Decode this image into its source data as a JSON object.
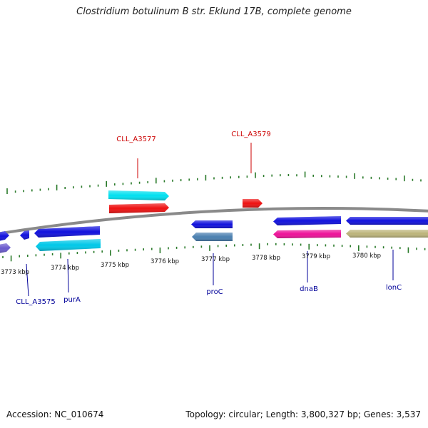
{
  "title": "Clostridium botulinum B str. Eklund 17B, complete genome",
  "footer": {
    "accession": "Accession: NC_010674",
    "topology": "Topology: circular; Length: 3,800,327 bp; Genes: 3,537"
  },
  "colors": {
    "backbone": "#8a8a8a",
    "tick": "#2a7a2a",
    "label_red": "#cc0000",
    "label_blue": "#000099"
  },
  "scale_labels": [
    "3773 kbp",
    "3774 kbp",
    "3775 kbp",
    "3776 kbp",
    "3777 kbp",
    "3778 kbp",
    "3779 kbp",
    "3780 kbp"
  ],
  "gene_labels": [
    {
      "text": "CLL_A3577",
      "color": "#cc0000"
    },
    {
      "text": "CLL_A3579",
      "color": "#cc0000"
    },
    {
      "text": "CLL_A3575",
      "color": "#000099"
    },
    {
      "text": "purA",
      "color": "#000099"
    },
    {
      "text": "proC",
      "color": "#000099"
    },
    {
      "text": "dnaB",
      "color": "#000099"
    },
    {
      "text": "lonC",
      "color": "#000099"
    }
  ],
  "features": [
    {
      "name": "gene-cll-a3577-cds",
      "color": "#00e0f0",
      "strand": "+"
    },
    {
      "name": "gene-cll-a3577",
      "color": "#ee1111",
      "strand": "+"
    },
    {
      "name": "gene-cll-a3579",
      "color": "#ee1111",
      "strand": "+"
    },
    {
      "name": "gene-left-partial-1",
      "color": "#1111dd",
      "strand": "+"
    },
    {
      "name": "gene-left-partial-2",
      "color": "#6a5acd",
      "strand": "+"
    },
    {
      "name": "gene-cll-a3575",
      "color": "#1111dd",
      "strand": "-"
    },
    {
      "name": "gene-purA",
      "color": "#1111dd",
      "strand": "-"
    },
    {
      "name": "gene-purA-cds",
      "color": "#00c8e8",
      "strand": "-"
    },
    {
      "name": "gene-proC",
      "color": "#1111dd",
      "strand": "-"
    },
    {
      "name": "gene-proC-cds",
      "color": "#4a7fb0",
      "strand": "-"
    },
    {
      "name": "gene-dnaB",
      "color": "#1111dd",
      "strand": "-"
    },
    {
      "name": "gene-dnaB-cds",
      "color": "#ee1199",
      "strand": "-"
    },
    {
      "name": "gene-lonC",
      "color": "#1111dd",
      "strand": "-"
    },
    {
      "name": "gene-lonC-cds",
      "color": "#bcb47a",
      "strand": "-"
    }
  ]
}
